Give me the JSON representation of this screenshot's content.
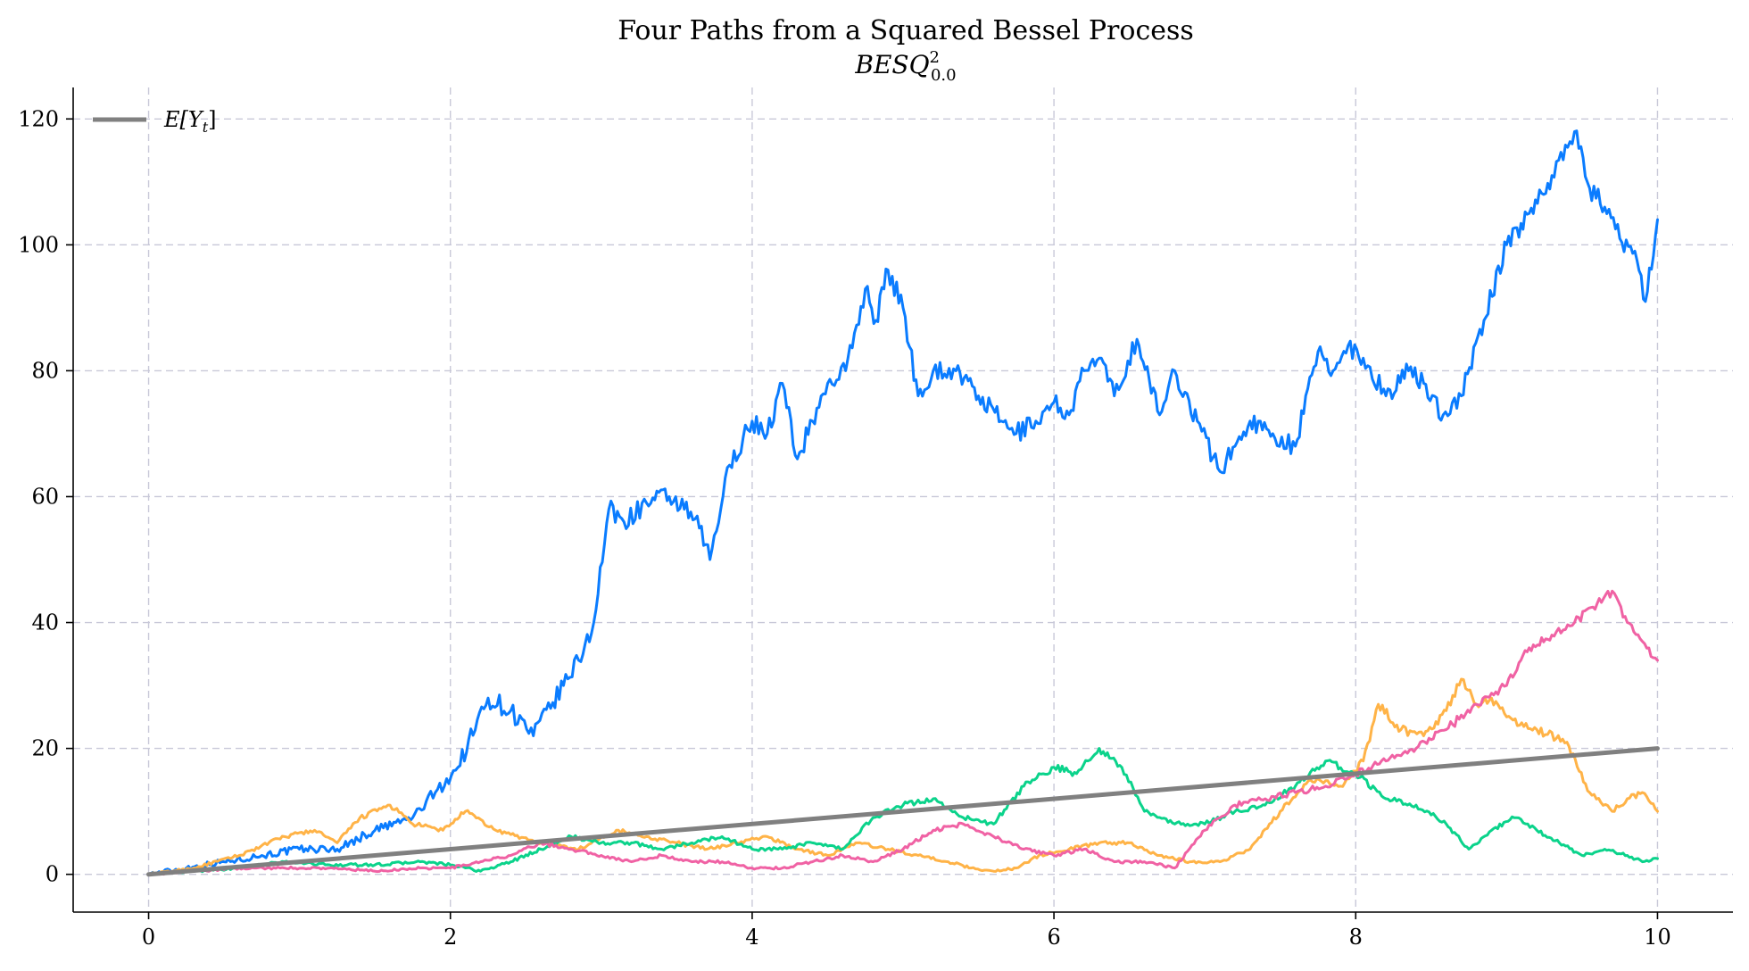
{
  "chart_data": {
    "type": "line",
    "title": "Four Paths from a Squared Bessel Process",
    "subtitle": "BESQ",
    "subtitle_sup": "2",
    "subtitle_sub": "0.0",
    "xlabel": "",
    "ylabel": "",
    "xlim": [
      -0.5,
      10.5
    ],
    "ylim": [
      -6,
      125
    ],
    "xticks": [
      0,
      2,
      4,
      6,
      8,
      10
    ],
    "yticks": [
      0,
      20,
      40,
      60,
      80,
      100,
      120
    ],
    "grid": true,
    "legend": {
      "placement": "top-left",
      "entries": [
        {
          "label": "E[Y",
          "label_sub": "t",
          "label_close": "]",
          "color": "#808080"
        }
      ]
    },
    "series": [
      {
        "color": "#0a7cff",
        "x": [
          0,
          0.25,
          0.5,
          0.75,
          1.0,
          1.25,
          1.5,
          1.75,
          1.9,
          2.05,
          2.25,
          2.4,
          2.55,
          2.75,
          2.85,
          2.95,
          3.05,
          3.15,
          3.3,
          3.45,
          3.55,
          3.65,
          3.72,
          3.85,
          4.0,
          4.1,
          4.2,
          4.3,
          4.4,
          4.5,
          4.62,
          4.75,
          4.82,
          4.9,
          5.0,
          5.1,
          5.2,
          5.35,
          5.5,
          5.65,
          5.75,
          5.88,
          6.0,
          6.1,
          6.2,
          6.3,
          6.4,
          6.55,
          6.7,
          6.8,
          6.95,
          7.1,
          7.2,
          7.3,
          7.45,
          7.6,
          7.75,
          7.85,
          7.95,
          8.05,
          8.2,
          8.35,
          8.45,
          8.58,
          8.7,
          8.85,
          9.0,
          9.15,
          9.3,
          9.45,
          9.55,
          9.65,
          9.75,
          9.85,
          9.92,
          10.0
        ],
        "y": [
          0,
          1,
          2,
          3,
          4,
          4,
          7,
          9,
          13,
          17,
          28,
          26,
          22,
          30,
          34,
          40,
          58,
          56,
          59,
          60,
          58,
          55,
          50,
          65,
          72,
          70,
          78,
          66,
          72,
          78,
          80,
          93,
          88,
          96,
          90,
          76,
          80,
          80,
          76,
          72,
          70,
          72,
          75,
          73,
          80,
          82,
          76,
          85,
          73,
          80,
          72,
          64,
          68,
          72,
          70,
          68,
          83,
          80,
          84,
          82,
          76,
          80,
          78,
          73,
          76,
          88,
          100,
          105,
          111,
          118,
          109,
          106,
          101,
          99,
          91,
          104
        ]
      },
      {
        "color": "#ffb347",
        "x": [
          0,
          0.3,
          0.6,
          0.9,
          1.1,
          1.25,
          1.4,
          1.6,
          1.75,
          1.95,
          2.1,
          2.3,
          2.6,
          2.85,
          3.1,
          3.3,
          3.5,
          3.7,
          3.9,
          4.1,
          4.3,
          4.5,
          4.7,
          4.9,
          5.1,
          5.3,
          5.45,
          5.6,
          5.75,
          5.9,
          6.1,
          6.3,
          6.5,
          6.7,
          6.9,
          7.1,
          7.3,
          7.5,
          7.7,
          7.9,
          8.05,
          8.15,
          8.3,
          8.45,
          8.6,
          8.7,
          8.8,
          8.9,
          9.0,
          9.2,
          9.4,
          9.55,
          9.7,
          9.8,
          9.9,
          10.0
        ],
        "y": [
          0,
          1,
          3,
          6,
          7,
          5,
          9,
          11,
          8,
          7,
          10,
          7,
          5,
          4,
          7,
          6,
          5,
          4,
          5,
          6,
          4,
          3,
          5,
          4,
          3,
          2,
          1,
          0.5,
          1,
          3,
          4,
          5,
          5,
          3,
          2,
          2,
          4,
          10,
          15,
          14,
          18,
          27,
          23,
          22,
          26,
          31,
          27,
          28,
          25,
          23,
          21,
          13,
          10,
          12,
          13,
          10
        ]
      },
      {
        "color": "#0bd38b",
        "x": [
          0,
          0.3,
          0.6,
          0.9,
          1.2,
          1.5,
          1.8,
          2.0,
          2.2,
          2.4,
          2.6,
          2.8,
          3.0,
          3.2,
          3.4,
          3.6,
          3.8,
          4.0,
          4.2,
          4.4,
          4.6,
          4.8,
          5.0,
          5.2,
          5.4,
          5.6,
          5.8,
          6.0,
          6.15,
          6.3,
          6.45,
          6.6,
          6.8,
          7.0,
          7.2,
          7.4,
          7.6,
          7.8,
          8.0,
          8.2,
          8.4,
          8.6,
          8.75,
          8.9,
          9.05,
          9.2,
          9.35,
          9.5,
          9.65,
          9.8,
          9.9,
          10.0
        ],
        "y": [
          0,
          0.5,
          1,
          2,
          1.5,
          1.5,
          2,
          1.5,
          0.5,
          2,
          4,
          6,
          5,
          5,
          4,
          5,
          6,
          4,
          4,
          5,
          4,
          9,
          11,
          12,
          9,
          8,
          14,
          17,
          16,
          20,
          17,
          10,
          8,
          8,
          10,
          11,
          14,
          18,
          16,
          12,
          11,
          8,
          4,
          7,
          9,
          7,
          5,
          3,
          4,
          3,
          2,
          2.5
        ]
      },
      {
        "color": "#f062a4",
        "x": [
          0,
          0.3,
          0.6,
          0.9,
          1.2,
          1.5,
          1.8,
          2.0,
          2.2,
          2.4,
          2.6,
          2.8,
          3.0,
          3.2,
          3.4,
          3.6,
          3.8,
          4.0,
          4.2,
          4.4,
          4.6,
          4.8,
          5.0,
          5.2,
          5.4,
          5.6,
          5.8,
          6.0,
          6.2,
          6.4,
          6.6,
          6.8,
          7.0,
          7.2,
          7.4,
          7.6,
          7.8,
          8.0,
          8.2,
          8.4,
          8.6,
          8.8,
          9.0,
          9.15,
          9.3,
          9.45,
          9.6,
          9.7,
          9.8,
          9.9,
          10.0
        ],
        "y": [
          0,
          0.5,
          1,
          1,
          1,
          0.5,
          1,
          1,
          2,
          3,
          5,
          4,
          3,
          2,
          3,
          2,
          2,
          1,
          1,
          2,
          3,
          2,
          4,
          7,
          8,
          6,
          4,
          3,
          4,
          2,
          2,
          1,
          7,
          11,
          12,
          13,
          14,
          16,
          18,
          20,
          23,
          27,
          30,
          36,
          38,
          40,
          43,
          45,
          40,
          37,
          34
        ]
      },
      {
        "name": "E[Y_t]",
        "color": "#808080",
        "x": [
          0,
          10
        ],
        "y": [
          0,
          20
        ]
      }
    ]
  }
}
